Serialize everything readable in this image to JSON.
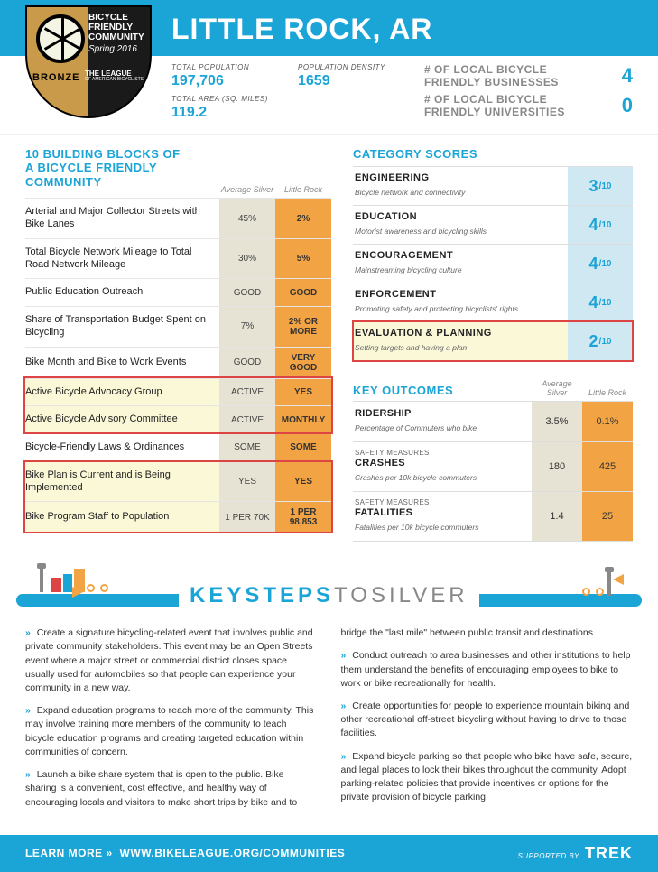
{
  "header": {
    "city": "LITTLE ROCK, AR",
    "badge": {
      "title": "BICYCLE FRIENDLY COMMUNITY",
      "season": "Spring 2016",
      "level": "BRONZE",
      "league": "THE LEAGUE",
      "league_sub": "OF AMERICAN BICYCLISTS"
    },
    "stats": {
      "population_label": "TOTAL POPULATION",
      "population": "197,706",
      "area_label": "TOTAL AREA (sq. miles)",
      "area": "119.2",
      "density_label": "POPULATION DENSITY",
      "density": "1659"
    },
    "counts": {
      "businesses_label": "# OF LOCAL BICYCLE FRIENDLY BUSINESSES",
      "businesses": "4",
      "universities_label": "# OF LOCAL BICYCLE FRIENDLY UNIVERSITIES",
      "universities": "0"
    }
  },
  "building_blocks": {
    "title1": "10 BUILDING BLOCKS OF",
    "title2": "A BICYCLE FRIENDLY COMMUNITY",
    "avg_head": "Average Silver",
    "you_head": "Little Rock",
    "rows": [
      {
        "label": "Arterial and Major Collector Streets with Bike Lanes",
        "avg": "45%",
        "you": "2%",
        "hl": false
      },
      {
        "label": "Total Bicycle Network Mileage to Total Road Network Mileage",
        "avg": "30%",
        "you": "5%",
        "hl": false
      },
      {
        "label": "Public Education Outreach",
        "avg": "GOOD",
        "you": "GOOD",
        "hl": false
      },
      {
        "label": "Share of Transportation Budget Spent on Bicycling",
        "avg": "7%",
        "you": "2% OR MORE",
        "hl": false
      },
      {
        "label": "Bike Month and Bike to Work Events",
        "avg": "GOOD",
        "you": "VERY GOOD",
        "hl": false
      },
      {
        "label": "Active Bicycle Advocacy Group",
        "avg": "ACTIVE",
        "you": "YES",
        "hl": true
      },
      {
        "label": "Active Bicycle Advisory Committee",
        "avg": "ACTIVE",
        "you": "MONTHLY",
        "hl": true
      },
      {
        "label": "Bicycle-Friendly Laws & Ordinances",
        "avg": "SOME",
        "you": "SOME",
        "hl": false
      },
      {
        "label": "Bike Plan is Current and is Being Implemented",
        "avg": "YES",
        "you": "YES",
        "hl": true
      },
      {
        "label": "Bike Program Staff to Population",
        "avg": "1 PER 70K",
        "you": "1 PER 98,853",
        "hl": true
      }
    ]
  },
  "categories": {
    "title": "CATEGORY SCORES",
    "denom": "/10",
    "rows": [
      {
        "name": "ENGINEERING",
        "sub": "Bicycle network and connectivity",
        "score": "3",
        "hl": false
      },
      {
        "name": "EDUCATION",
        "sub": "Motorist awareness and bicycling skills",
        "score": "4",
        "hl": false
      },
      {
        "name": "ENCOURAGEMENT",
        "sub": "Mainstreaming bicycling culture",
        "score": "4",
        "hl": false
      },
      {
        "name": "ENFORCEMENT",
        "sub": "Promoting safety and protecting bicyclists' rights",
        "score": "4",
        "hl": false
      },
      {
        "name": "EVALUATION & PLANNING",
        "sub": "Setting targets and having a plan",
        "score": "2",
        "hl": true
      }
    ]
  },
  "outcomes": {
    "title": "KEY OUTCOMES",
    "avg_head": "Average Silver",
    "you_head": "Little Rock",
    "rows": [
      {
        "name": "RIDERSHIP",
        "sub": "Percentage of Commuters who bike",
        "small": "",
        "avg": "3.5%",
        "you": "0.1%"
      },
      {
        "name": "CRASHES",
        "sub": "Crashes per 10k bicycle commuters",
        "small": "SAFETY MEASURES",
        "avg": "180",
        "you": "425"
      },
      {
        "name": "FATALITIES",
        "sub": "Fatalities per 10k bicycle commuters",
        "small": "SAFETY MEASURES",
        "avg": "1.4",
        "you": "25"
      }
    ]
  },
  "keysteps": {
    "title_a": "KEYSTEPS",
    "title_b": "TO",
    "title_c": "SILVER"
  },
  "body": {
    "left": [
      "Create a signature bicycling-related event that involves public and private community stakeholders. This event may be an Open Streets event where a major street or commercial district closes space usually used for automobiles so that people can experience your community in a new way.",
      "Expand education programs to reach more of the community. This may involve training more members of the community to teach bicycle education programs and creating targeted education within communities of concern.",
      "Launch a bike share system that is open to the public. Bike sharing is a convenient, cost effective, and healthy way of encouraging locals and visitors to make short trips by bike and to"
    ],
    "right": [
      "bridge the \"last mile\" between public transit and destinations.",
      "Conduct outreach to area businesses and other institutions to help them understand the benefits of encouraging employees to bike to work or bike recreationally for health.",
      "Create opportunities for people to experience mountain biking and other recreational off-street bicycling without having to drive to those facilities.",
      "Expand bicycle parking so that people who bike have safe, secure, and legal places to lock their bikes throughout the community. Adopt parking-related policies that provide incentives or options for the private provision of bicycle parking."
    ]
  },
  "footer": {
    "learn": "LEARN MORE",
    "url": "WWW.BIKELEAGUE.ORG/COMMUNITIES",
    "supported": "SUPPORTED BY",
    "sponsor": "TREK"
  },
  "colors": {
    "brand": "#1ba4d6",
    "accent": "#f2a444",
    "cream": "#e6e3d4",
    "hl_bg": "#fbf8d8",
    "hl_border": "#d44"
  }
}
